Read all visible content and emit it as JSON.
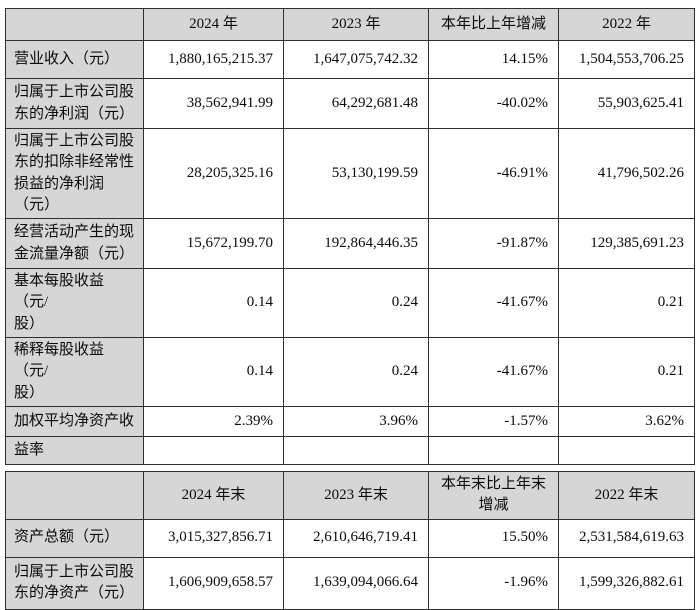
{
  "colors": {
    "header_fill": "#d6d6d6",
    "border": "#2f2f2f",
    "text": "#0b0b0b",
    "background": "#ffffff"
  },
  "annual_table": {
    "header": [
      "",
      "2024 年",
      "2023 年",
      "本年比上年增减",
      "2022 年"
    ],
    "rows": [
      {
        "label": "营业收入（元）",
        "values": [
          "1,880,165,215.37",
          "1,647,075,742.32",
          "14.15%",
          "1,504,553,706.25"
        ]
      },
      {
        "label": "归属于上市公司股\n东的净利润（元）",
        "values": [
          "38,562,941.99",
          "64,292,681.48",
          "-40.02%",
          "55,903,625.41"
        ]
      },
      {
        "label": "归属于上市公司股\n东的扣除非经常性\n损益的净利润（元）",
        "values": [
          "28,205,325.16",
          "53,130,199.59",
          "-46.91%",
          "41,796,502.26"
        ]
      },
      {
        "label": "经营活动产生的现\n金流量净额（元）",
        "values": [
          "15,672,199.70",
          "192,864,446.35",
          "-91.87%",
          "129,385,691.23"
        ]
      },
      {
        "label": "基本每股收益（元/\n股）",
        "values": [
          "0.14",
          "0.24",
          "-41.67%",
          "0.21"
        ]
      },
      {
        "label": "稀释每股收益（元/\n股）",
        "values": [
          "0.14",
          "0.24",
          "-41.67%",
          "0.21"
        ]
      },
      {
        "label": "加权平均净资产收",
        "values": [
          "2.39%",
          "3.96%",
          "-1.57%",
          "3.62%"
        ]
      },
      {
        "label": "益率",
        "values": [
          "",
          "",
          "",
          ""
        ]
      }
    ]
  },
  "yearend_table": {
    "header": [
      "",
      "2024 年末",
      "2023 年末",
      "本年末比上年末\n增减",
      "2022 年末"
    ],
    "rows": [
      {
        "label": "资产总额（元）",
        "values": [
          "3,015,327,856.71",
          "2,610,646,719.41",
          "15.50%",
          "2,531,584,619.63"
        ]
      },
      {
        "label": "归属于上市公司股\n东的净资产（元）",
        "values": [
          "1,606,909,658.57",
          "1,639,094,066.64",
          "-1.96%",
          "1,599,326,882.61"
        ]
      }
    ]
  }
}
